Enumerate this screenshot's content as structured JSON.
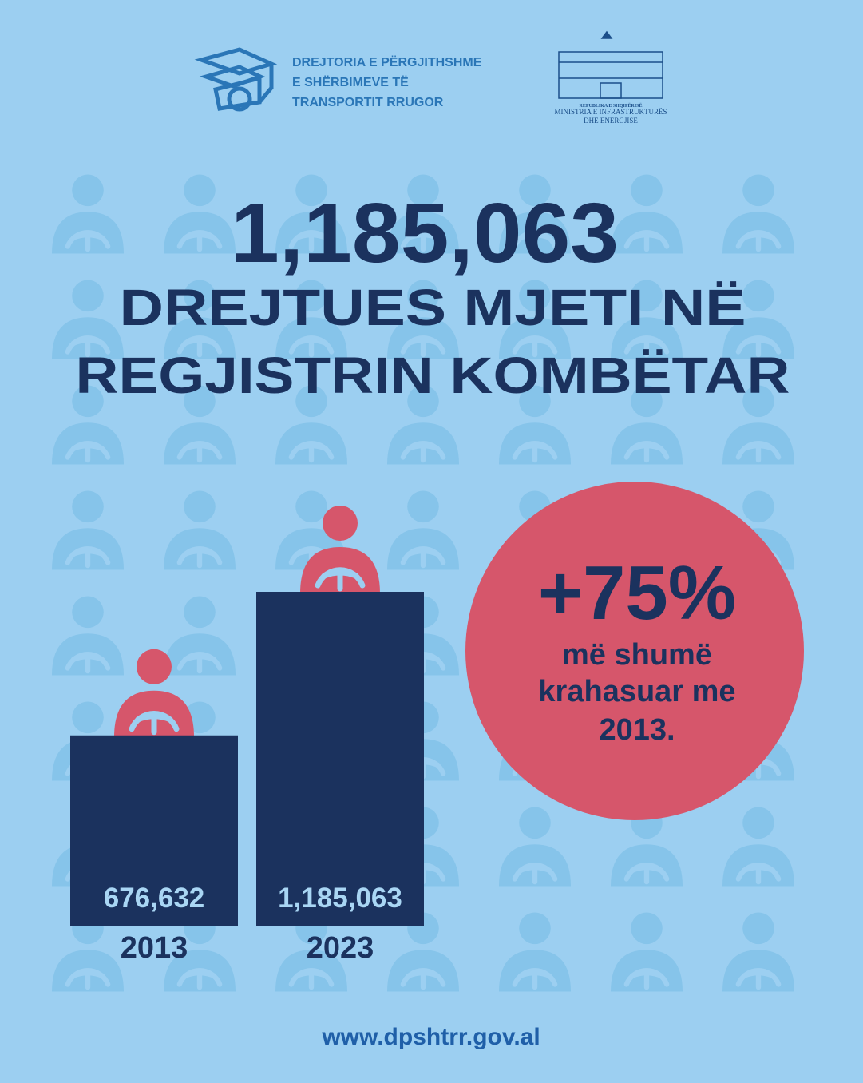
{
  "header": {
    "agency": [
      "DREJTORIA E PËRGJITHSHME",
      "E SHËRBIMEVE TË",
      "TRANSPORTIT RRUGOR"
    ],
    "ministry": [
      "REPUBLIKA E SHQIPËRISË",
      "MINISTRIA E INFRASTRUKTURËS",
      "DHE ENERGJISË"
    ]
  },
  "chart_data": {
    "type": "bar",
    "title": "1,185,063",
    "subtitle": [
      "DREJTUES MJETI NË",
      "REGJISTRIN KOMBËTAR"
    ],
    "categories": [
      "2013",
      "2023"
    ],
    "values": [
      676632,
      1185063
    ],
    "value_labels": [
      "676,632",
      "1,185,063"
    ],
    "color": "#1b325e",
    "annotation": {
      "value": "+75%",
      "text": [
        "më shumë",
        "krahasuar me",
        "2013."
      ]
    }
  },
  "footer": {
    "url": "www.dpshtrr.gov.al"
  }
}
